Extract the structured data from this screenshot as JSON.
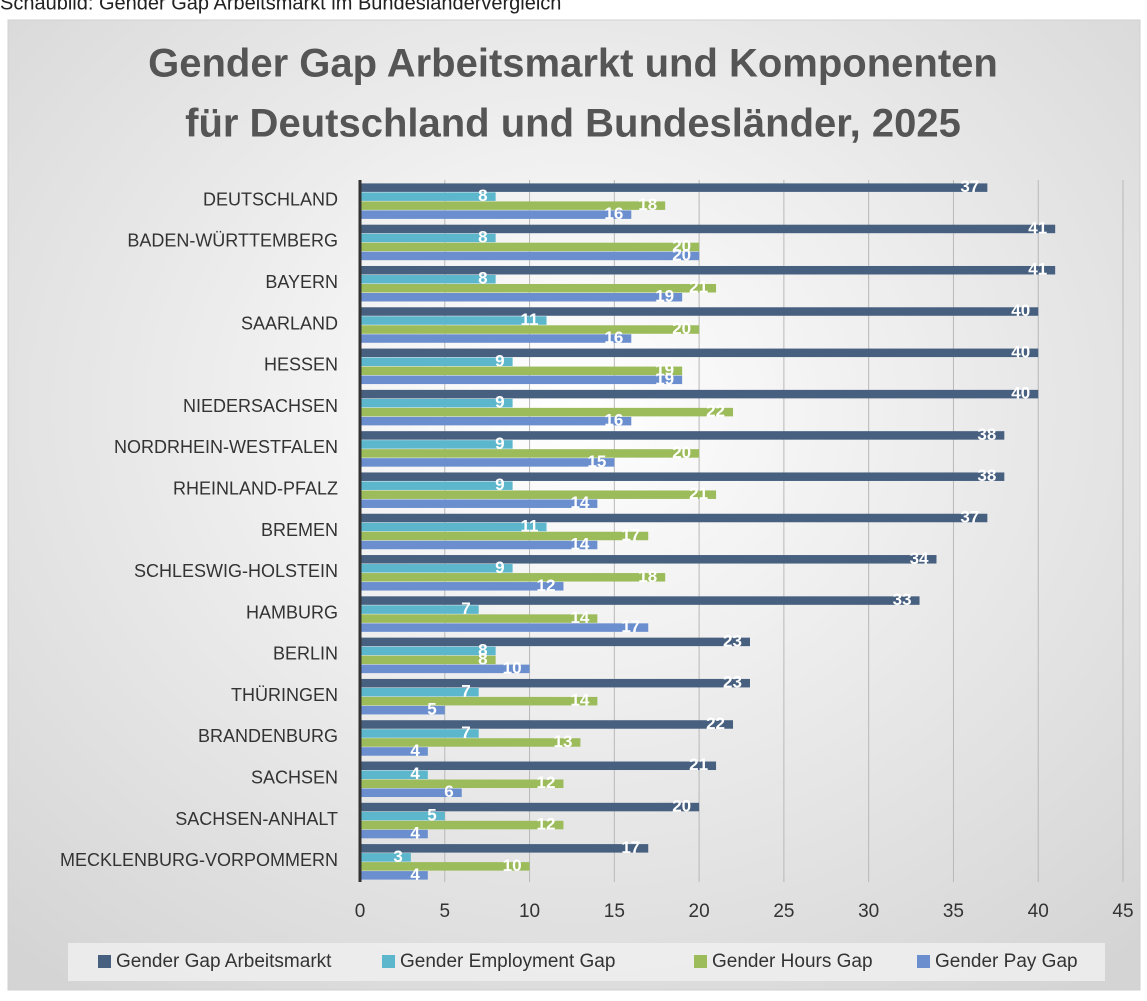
{
  "caption": "Schaubild: Gender Gap Arbeitsmarkt im Bundesländervergleich",
  "chart_data": {
    "type": "hbar",
    "title": [
      "Gender Gap Arbeitsmarkt und Komponenten",
      "für Deutschland und Bundesländer, 2025"
    ],
    "categories": [
      "DEUTSCHLAND",
      "BADEN-WÜRTTEMBERG",
      "BAYERN",
      "SAARLAND",
      "HESSEN",
      "NIEDERSACHSEN",
      "NORDRHEIN-WESTFALEN",
      "RHEINLAND-PFALZ",
      "BREMEN",
      "SCHLESWIG-HOLSTEIN",
      "HAMBURG",
      "BERLIN",
      "THÜRINGEN",
      "BRANDENBURG",
      "SACHSEN",
      "SACHSEN-ANHALT",
      "MECKLENBURG-VORPOMMERN"
    ],
    "series": [
      {
        "name": "Gender Gap Arbeitsmarkt",
        "color": "#47607f",
        "values": [
          37,
          41,
          41,
          40,
          40,
          40,
          38,
          38,
          37,
          34,
          33,
          23,
          23,
          22,
          21,
          20,
          17
        ]
      },
      {
        "name": "Gender Employment Gap",
        "color": "#5cb6cc",
        "values": [
          8,
          8,
          8,
          11,
          9,
          9,
          9,
          9,
          11,
          9,
          7,
          8,
          7,
          7,
          4,
          5,
          3
        ]
      },
      {
        "name": "Gender Hours Gap",
        "color": "#9cbc5c",
        "values": [
          18,
          20,
          21,
          20,
          19,
          22,
          20,
          21,
          17,
          18,
          14,
          8,
          14,
          13,
          12,
          12,
          10
        ]
      },
      {
        "name": "Gender Pay Gap",
        "color": "#6b8fce",
        "values": [
          16,
          20,
          19,
          16,
          19,
          16,
          15,
          14,
          14,
          12,
          17,
          10,
          5,
          4,
          6,
          4,
          4
        ]
      }
    ],
    "xlim": [
      0,
      45
    ],
    "xticks": [
      0,
      5,
      10,
      15,
      20,
      25,
      30,
      35,
      40,
      45
    ],
    "grid": true,
    "legend": "bottom"
  }
}
